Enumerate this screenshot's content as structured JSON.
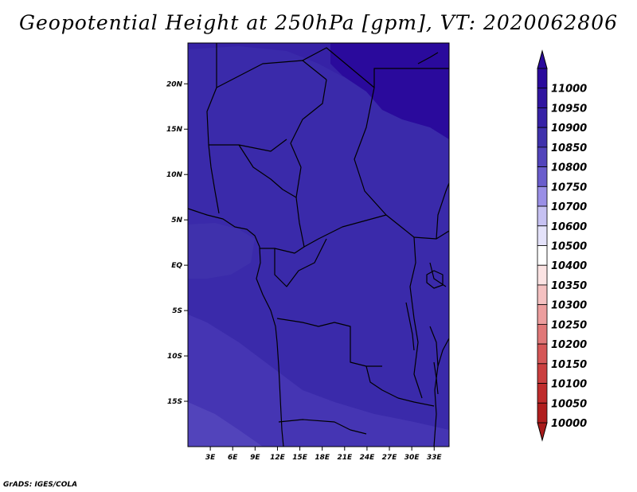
{
  "title": "Geopotential Height at 250hPa [gpm], VT: 2020062806",
  "credit": "GrADS: IGES/COLA",
  "map": {
    "lon_range": [
      0,
      35
    ],
    "lat_range": [
      -20,
      24.5
    ],
    "lat_ticks": [
      {
        "value": 20,
        "label": "20N"
      },
      {
        "value": 15,
        "label": "15N"
      },
      {
        "value": 10,
        "label": "10N"
      },
      {
        "value": 5,
        "label": "5N"
      },
      {
        "value": 0,
        "label": "EQ"
      },
      {
        "value": -5,
        "label": "5S"
      },
      {
        "value": -10,
        "label": "10S"
      },
      {
        "value": -15,
        "label": "15S"
      }
    ],
    "lon_ticks": [
      {
        "value": 3,
        "label": "3E"
      },
      {
        "value": 6,
        "label": "6E"
      },
      {
        "value": 9,
        "label": "9E"
      },
      {
        "value": 12,
        "label": "12E"
      },
      {
        "value": 15,
        "label": "15E"
      },
      {
        "value": 18,
        "label": "18E"
      },
      {
        "value": 21,
        "label": "21E"
      },
      {
        "value": 24,
        "label": "24E"
      },
      {
        "value": 27,
        "label": "27E"
      },
      {
        "value": 30,
        "label": "30E"
      },
      {
        "value": 33,
        "label": "33E"
      }
    ]
  },
  "colorbar": {
    "levels": [
      {
        "label": "11000",
        "color": "#2a0a9c"
      },
      {
        "label": "10950",
        "color": "#3015a0"
      },
      {
        "label": "10900",
        "color": "#3622a6"
      },
      {
        "label": "10850",
        "color": "#3f31ac"
      },
      {
        "label": "10800",
        "color": "#5244bb"
      },
      {
        "label": "10750",
        "color": "#6a5dcc"
      },
      {
        "label": "10700",
        "color": "#9a8fe6"
      },
      {
        "label": "10600",
        "color": "#c6c1f2"
      },
      {
        "label": "10500",
        "color": "#e4e2fa"
      },
      {
        "label": "10400",
        "color": "#ffffff"
      },
      {
        "label": "10350",
        "color": "#fbe3e3"
      },
      {
        "label": "10300",
        "color": "#f4c1c1"
      },
      {
        "label": "10250",
        "color": "#ec9e9e"
      },
      {
        "label": "10200",
        "color": "#e07878"
      },
      {
        "label": "10150",
        "color": "#d55757"
      },
      {
        "label": "10100",
        "color": "#ca3f3f"
      },
      {
        "label": "10050",
        "color": "#bf2c2c"
      },
      {
        "label": "10000",
        "color": "#b01e1e"
      }
    ],
    "over_color": "#2a0a9c",
    "under_color": "#a81a1a"
  },
  "colors": {
    "field_north": "#2a0a9c",
    "field_mid": "#3622a6",
    "field_main": "#3a2aaa",
    "field_south": "#4535b3",
    "field_south_edge": "#5244bb"
  }
}
